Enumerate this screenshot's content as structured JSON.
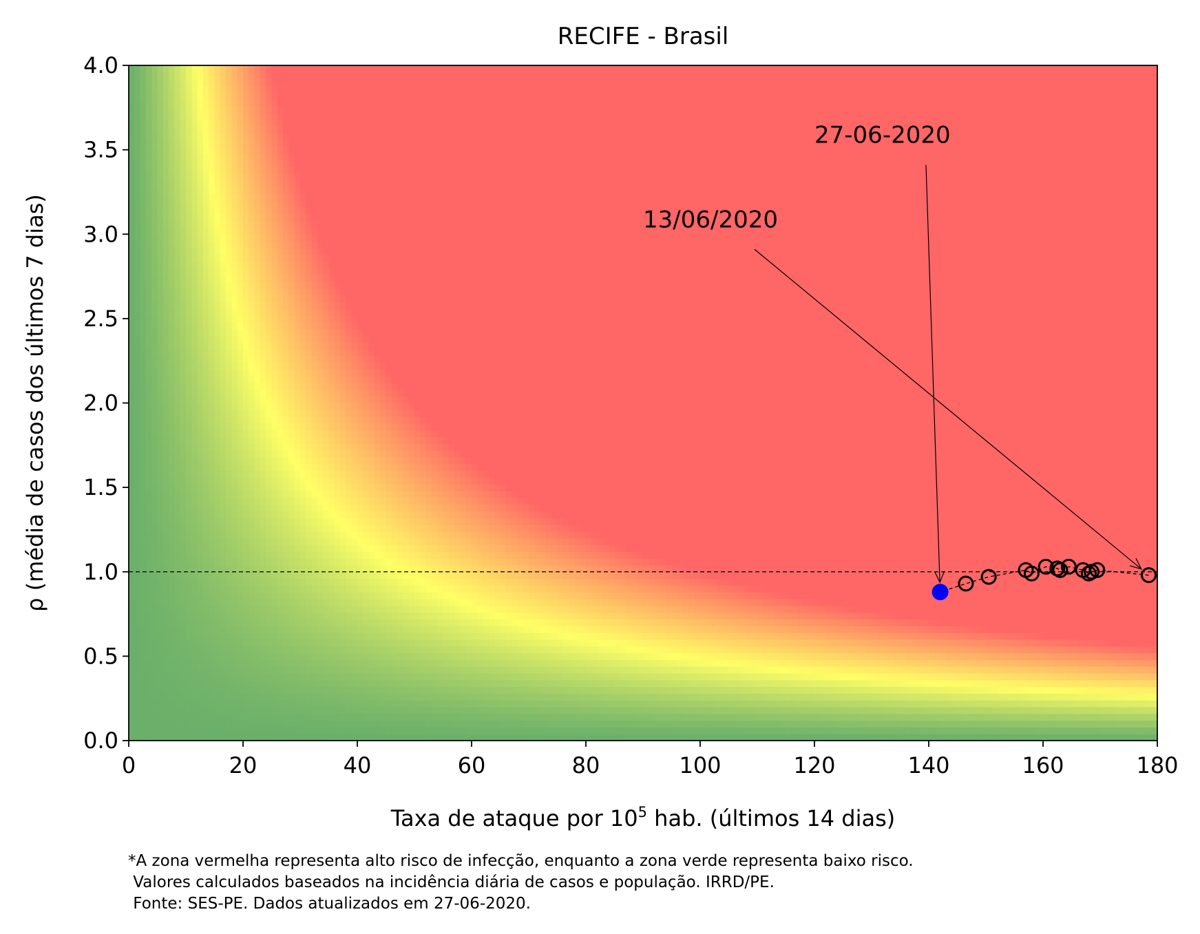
{
  "chart_data": {
    "type": "scatter",
    "title": "RECIFE - Brasil",
    "xlabel_main": "Taxa de ataque por 10",
    "xlabel_sup": "5",
    "xlabel_rest": " hab. (últimos 14 dias)",
    "ylabel": "ρ (média de casos dos últimos 7 dias)",
    "xlim": [
      0,
      180
    ],
    "ylim": [
      0,
      4
    ],
    "x_ticks": [
      "0",
      "20",
      "40",
      "60",
      "80",
      "100",
      "120",
      "140",
      "160",
      "180"
    ],
    "y_ticks": [
      "0.0",
      "0.5",
      "1.0",
      "1.5",
      "2.0",
      "2.5",
      "3.0",
      "3.5",
      "4.0"
    ],
    "reference_line_y": 1.0,
    "background": "risk heatmap: green (low) to yellow to red (high), depends on x·y",
    "colors": {
      "green": "#6aaf6a",
      "yellow": "#ffff66",
      "red": "#ff6666",
      "current_point": "#0000ff"
    },
    "series": [
      {
        "marker": "open-circle",
        "points": [
          [
            178.5,
            0.98
          ],
          [
            169.5,
            1.01
          ],
          [
            168.5,
            1.0
          ],
          [
            168.0,
            0.99
          ],
          [
            167.0,
            1.01
          ],
          [
            164.5,
            1.03
          ],
          [
            163.0,
            1.01
          ],
          [
            162.5,
            1.02
          ],
          [
            160.5,
            1.03
          ],
          [
            158.0,
            0.99
          ],
          [
            157.0,
            1.01
          ],
          [
            150.5,
            0.97
          ],
          [
            146.5,
            0.93
          ]
        ]
      },
      {
        "marker": "filled-circle",
        "points": [
          [
            142.0,
            0.88
          ]
        ]
      }
    ],
    "annotations": [
      {
        "text": "13/06/2020",
        "text_xy": [
          90,
          3.0
        ],
        "arrow_to": [
          178.5,
          0.98
        ]
      },
      {
        "text": "27-06-2020",
        "text_xy": [
          120,
          3.5
        ],
        "arrow_to": [
          142.0,
          0.88
        ]
      }
    ]
  },
  "footnote": [
    "*A zona vermelha representa alto risco de infecção, enquanto a zona verde representa baixo risco.",
    " Valores calculados baseados na incidência diária de casos e população. IRRD/PE.",
    " Fonte: SES-PE. Dados atualizados em 27-06-2020."
  ]
}
